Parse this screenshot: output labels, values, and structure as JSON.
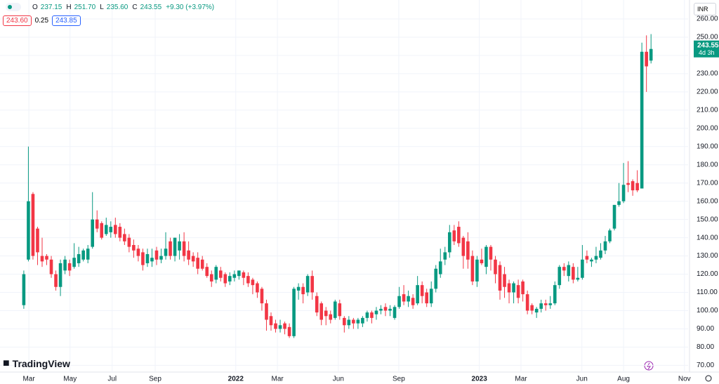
{
  "chart_data": {
    "type": "candlestick",
    "ohlc_legend": [
      {
        "key": "O",
        "value": "237.15"
      },
      {
        "key": "H",
        "value": "251.70"
      },
      {
        "key": "L",
        "value": "235.60"
      },
      {
        "key": "C",
        "value": "243.55"
      }
    ],
    "change": "+9.30 (+3.97%)",
    "bid": "243.60",
    "spread": "0.25",
    "ask": "243.85",
    "currency": "INR",
    "last_price_label": "243.55",
    "countdown": "4d 3h",
    "brand": "TradingView",
    "up_color": "#089981",
    "down_color": "#f23645",
    "grid": true,
    "open": [
      103,
      128,
      164,
      145,
      130,
      130,
      128,
      120,
      113,
      122,
      126,
      124,
      126,
      128,
      128,
      135,
      150,
      148,
      142,
      143,
      147,
      146,
      142,
      140,
      136,
      134,
      132,
      126,
      127,
      133,
      128,
      130,
      138,
      130,
      133,
      138,
      133,
      130,
      129,
      128,
      124,
      120,
      117,
      122,
      120,
      116,
      118,
      119,
      121,
      119,
      117,
      115,
      112,
      104,
      97,
      93,
      90,
      93,
      91,
      86,
      111,
      113,
      110,
      119,
      108,
      104,
      100,
      98,
      96,
      104,
      96,
      92,
      95,
      93,
      93,
      96,
      99,
      98,
      100,
      102,
      100,
      96,
      102,
      109,
      105,
      107,
      104,
      114,
      110,
      104,
      112,
      120,
      128,
      132,
      144,
      146,
      140,
      138,
      130,
      116,
      128,
      124,
      135,
      128,
      125,
      120,
      115,
      110,
      114,
      116,
      109,
      103,
      99,
      101,
      104,
      103,
      104,
      114,
      124,
      119,
      124,
      117,
      118,
      130,
      127,
      128,
      129,
      133,
      138,
      145,
      158,
      160,
      170,
      171,
      170,
      167,
      242,
      237.15
    ],
    "high": [
      122,
      190,
      165,
      146,
      140,
      131,
      130,
      122,
      128,
      130,
      128,
      137,
      135,
      134,
      136,
      165,
      155,
      149,
      151,
      149,
      151,
      148,
      145,
      142,
      139,
      136,
      134,
      134,
      134,
      135,
      134,
      143,
      140,
      140,
      142,
      143,
      138,
      132,
      132,
      130,
      126,
      122,
      125,
      124,
      121,
      121,
      122,
      122,
      122,
      121,
      118,
      116,
      113,
      106,
      99,
      95,
      95,
      94,
      93,
      113,
      115,
      115,
      120,
      122,
      110,
      105,
      102,
      100,
      106,
      106,
      97,
      97,
      96,
      96,
      97,
      100,
      100,
      102,
      103,
      104,
      103,
      103,
      113,
      114,
      111,
      109,
      119,
      116,
      112,
      116,
      125,
      134,
      135,
      147,
      147,
      149,
      141,
      143,
      133,
      130,
      134,
      136,
      136,
      130,
      127,
      124,
      117,
      116,
      117,
      117,
      111,
      104,
      102,
      106,
      106,
      108,
      116,
      125,
      126,
      127,
      126,
      124,
      136,
      133,
      129,
      135,
      137,
      141,
      145,
      158,
      170,
      181,
      182,
      172,
      177,
      247,
      251,
      251.7
    ],
    "low": [
      101,
      127,
      128,
      125,
      124,
      125,
      118,
      111,
      108,
      120,
      119,
      123,
      124,
      127,
      126,
      134,
      143,
      139,
      141,
      140,
      140,
      138,
      136,
      132,
      129,
      127,
      122,
      124,
      124,
      125,
      126,
      128,
      128,
      127,
      128,
      127,
      125,
      124,
      120,
      122,
      118,
      113,
      115,
      116,
      113,
      114,
      116,
      117,
      114,
      113,
      109,
      107,
      100,
      89,
      89,
      88,
      88,
      87,
      85,
      85,
      106,
      104,
      108,
      106,
      97,
      92,
      92,
      93,
      95,
      95,
      88,
      90,
      90,
      90,
      91,
      94,
      93,
      95,
      98,
      97,
      97,
      95,
      101,
      103,
      102,
      101,
      103,
      104,
      102,
      102,
      110,
      118,
      125,
      129,
      136,
      135,
      123,
      123,
      114,
      113,
      125,
      120,
      122,
      115,
      106,
      107,
      104,
      104,
      104,
      105,
      98,
      98,
      96,
      99,
      100,
      101,
      103,
      112,
      119,
      116,
      115,
      116,
      117,
      126,
      124,
      126,
      128,
      131,
      137,
      144,
      157,
      159,
      165,
      163,
      165,
      167,
      220,
      235.6
    ],
    "close": [
      120,
      160,
      130,
      132,
      127,
      128,
      120,
      113,
      126,
      128,
      122,
      129,
      131,
      133,
      134,
      150,
      145,
      140,
      147,
      146,
      142,
      140,
      138,
      135,
      133,
      130,
      125,
      131,
      129,
      128,
      130,
      134,
      130,
      140,
      138,
      130,
      128,
      127,
      123,
      123,
      119,
      116,
      124,
      118,
      115,
      119,
      120,
      122,
      118,
      115,
      114,
      110,
      104,
      95,
      92,
      90,
      92,
      90,
      86,
      112,
      113,
      109,
      119,
      110,
      99,
      95,
      97,
      95,
      105,
      97,
      92,
      95,
      93,
      95,
      96,
      99,
      96,
      100,
      101,
      100,
      101,
      102,
      108,
      105,
      108,
      103,
      114,
      108,
      104,
      112,
      123,
      127,
      132,
      143,
      138,
      137,
      130,
      128,
      116,
      128,
      126,
      135,
      128,
      120,
      111,
      113,
      110,
      115,
      107,
      109,
      100,
      100,
      101,
      104,
      103,
      104,
      114,
      124,
      122,
      125,
      117,
      118,
      128,
      128,
      128,
      130,
      133,
      138,
      144,
      158,
      160,
      169,
      169,
      166,
      166,
      242,
      234,
      243.55
    ],
    "ylim": [
      66.3,
      270.4
    ],
    "yticks": [
      {
        "value": 70,
        "label": "70.00"
      },
      {
        "value": 80,
        "label": "80.00"
      },
      {
        "value": 90,
        "label": "90.00"
      },
      {
        "value": 100,
        "label": "100.00"
      },
      {
        "value": 110,
        "label": "110.00"
      },
      {
        "value": 120,
        "label": "120.00"
      },
      {
        "value": 130,
        "label": "130.00"
      },
      {
        "value": 140,
        "label": "140.00"
      },
      {
        "value": 150,
        "label": "150.00"
      },
      {
        "value": 160,
        "label": "160.00"
      },
      {
        "value": 170,
        "label": "170.00"
      },
      {
        "value": 180,
        "label": "180.00"
      },
      {
        "value": 190,
        "label": "190.00"
      },
      {
        "value": 200,
        "label": "200.00"
      },
      {
        "value": 210,
        "label": "210.00"
      },
      {
        "value": 220,
        "label": "220.00"
      },
      {
        "value": 230,
        "label": "230.00"
      },
      {
        "value": 240,
        "label": "240.00"
      },
      {
        "value": 250,
        "label": "250.00"
      },
      {
        "value": 260,
        "label": "260.00"
      }
    ],
    "xlim": [
      -5.2,
      145.1
    ],
    "xticks": [
      {
        "value": 1.1,
        "label": "Mar"
      },
      {
        "value": 10.1,
        "label": "May"
      },
      {
        "value": 19.3,
        "label": "Jul"
      },
      {
        "value": 28.7,
        "label": "Sep"
      },
      {
        "value": 46.3,
        "label": "2022"
      },
      {
        "value": 55.4,
        "label": "Mar"
      },
      {
        "value": 68.7,
        "label": "Jun"
      },
      {
        "value": 81.9,
        "label": "Sep"
      },
      {
        "value": 99.5,
        "label": "2023"
      },
      {
        "value": 108.6,
        "label": "Mar"
      },
      {
        "value": 121.9,
        "label": "Jun"
      },
      {
        "value": 131,
        "label": "Aug"
      },
      {
        "value": 144.3,
        "label": "Nov"
      }
    ]
  }
}
